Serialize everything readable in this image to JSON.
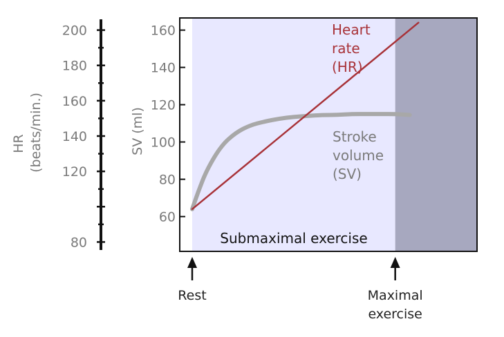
{
  "colors": {
    "submax_fill": "#e8e8ff",
    "max_fill": "#a7a8bf",
    "hr_line": "#a83238",
    "sv_line": "#a8a8a8",
    "axis": "#111111",
    "text_grey": "#7a7a7a",
    "text_dark": "#222222"
  },
  "chart_data": {
    "type": "line",
    "hr_axis": {
      "label_line1": "HR",
      "label_line2": "(beats/min.)",
      "ticks": [
        80,
        120,
        140,
        160,
        180,
        200
      ],
      "range": [
        70,
        210
      ]
    },
    "sv_axis": {
      "label": "SV (ml)",
      "ticks": [
        60,
        80,
        100,
        120,
        140,
        160
      ],
      "range": [
        48,
        168
      ]
    },
    "regions": {
      "submaximal_label": "Submaximal exercise",
      "submaximal_end": 0.7,
      "maximal_start": 0.7
    },
    "x_range": [
      -0.04,
      0.985
    ],
    "series": [
      {
        "name": "Heart rate (HR)",
        "label_lines": [
          "Heart",
          "rate",
          "(HR)"
        ],
        "axis": "sv",
        "x": [
          0,
          0.78
        ],
        "values": [
          64,
          164
        ]
      },
      {
        "name": "Stroke volume (SV)",
        "label_lines": [
          "Stroke",
          "volume",
          "(SV)"
        ],
        "axis": "sv",
        "x": [
          0,
          0.02,
          0.05,
          0.1,
          0.15,
          0.2,
          0.25,
          0.3,
          0.35,
          0.4,
          0.45,
          0.5,
          0.55,
          0.6,
          0.65,
          0.7,
          0.75
        ],
        "values": [
          64,
          73,
          85,
          98,
          105,
          109,
          111,
          112.5,
          113.5,
          114,
          114.5,
          114.5,
          115,
          115,
          115,
          115,
          114.5
        ]
      }
    ],
    "markers": [
      {
        "label_lines": [
          "Rest"
        ],
        "x": 0
      },
      {
        "label_lines": [
          "Maximal",
          "exercise"
        ],
        "x": 0.7
      }
    ]
  }
}
